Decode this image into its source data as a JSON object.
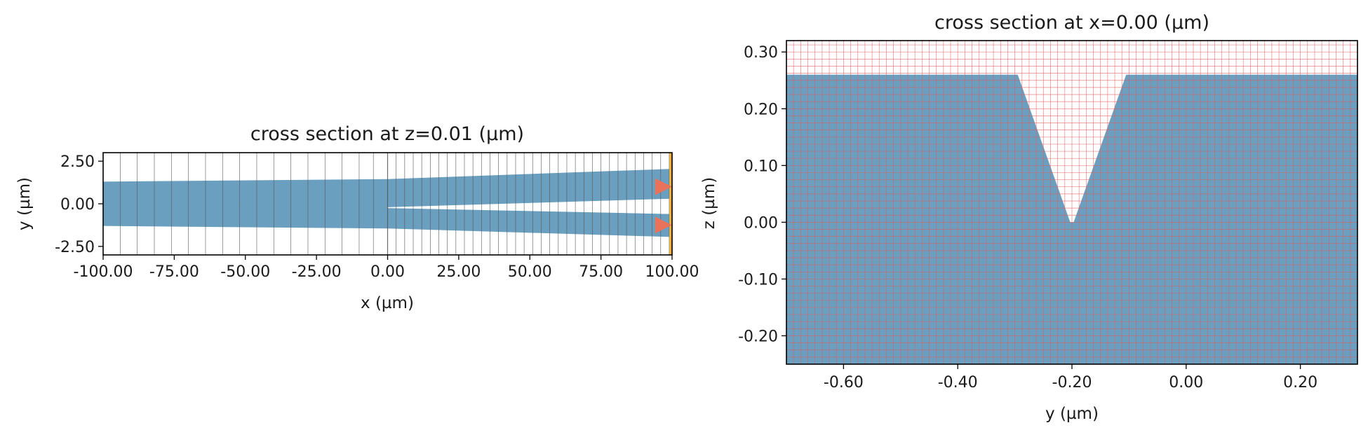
{
  "chart_data": [
    {
      "type": "cross-section",
      "title": "cross section at z=0.01 (µm)",
      "xlabel": "x (µm)",
      "ylabel": "y (µm)",
      "xlim": [
        -100,
        100
      ],
      "ylim": [
        -3,
        3
      ],
      "xticks": [
        -100,
        -75,
        -50,
        -25,
        0,
        25,
        50,
        75,
        100
      ],
      "xtick_labels": [
        "-100.00",
        "-75.00",
        "-50.00",
        "-25.00",
        "0.00",
        "25.00",
        "50.00",
        "75.00",
        "100.00"
      ],
      "yticks": [
        2.5,
        0,
        -2.5
      ],
      "ytick_labels": [
        "2.50",
        "0.00",
        "-2.50"
      ],
      "structure_color": "#6a9fc0",
      "grid_color": "#555555",
      "source_color": "#e8735a",
      "monitor_color": "#f0b040",
      "structures": [
        {
          "name": "input-waveguide",
          "points": [
            [
              -100,
              1.3
            ],
            [
              0,
              1.45
            ],
            [
              0,
              -0.25
            ],
            [
              -100,
              -1.3
            ]
          ]
        },
        {
          "name": "upper-branch",
          "points": [
            [
              0,
              1.45
            ],
            [
              100,
              2.05
            ],
            [
              100,
              0.3
            ],
            [
              0,
              -0.2
            ]
          ]
        },
        {
          "name": "lower-branch",
          "points": [
            [
              0,
              -0.25
            ],
            [
              100,
              -0.6
            ],
            [
              100,
              -1.95
            ],
            [
              0,
              -1.45
            ]
          ]
        },
        {
          "name": "input-waveguide-lower",
          "points": [
            [
              -100,
              -1.3
            ],
            [
              0,
              -1.45
            ],
            [
              0,
              -0.25
            ],
            [
              -100,
              -0.1
            ]
          ]
        }
      ],
      "grid_lines_x": [
        -100,
        -94,
        -88,
        -82,
        -76,
        -70,
        -64,
        -58,
        -52,
        -46,
        -40,
        -34,
        -28,
        -22,
        -16,
        -10,
        -5,
        0,
        3,
        6,
        9,
        12,
        15,
        18,
        21,
        24,
        27,
        30,
        33,
        36,
        39,
        42,
        45,
        48,
        51,
        54,
        57,
        60,
        63,
        66,
        69,
        72,
        75,
        78,
        81,
        84,
        87,
        90,
        93,
        96,
        99
      ],
      "sources": [
        [
          97.5,
          1.0
        ],
        [
          97.5,
          -1.25
        ]
      ],
      "monitor_x": 99.5
    },
    {
      "type": "cross-section",
      "title": "cross section at x=0.00 (µm)",
      "xlabel": "y (µm)",
      "ylabel": "z (µm)",
      "xlim": [
        -0.7,
        0.3
      ],
      "ylim": [
        -0.25,
        0.32
      ],
      "xticks": [
        -0.6,
        -0.4,
        -0.2,
        0.0,
        0.2
      ],
      "xtick_labels": [
        "-0.60",
        "-0.40",
        "-0.20",
        "0.00",
        "0.20"
      ],
      "yticks": [
        0.3,
        0.2,
        0.1,
        0.0,
        -0.1,
        -0.2
      ],
      "ytick_labels": [
        "0.30",
        "0.20",
        "0.10",
        "0.00",
        "-0.10",
        "-0.20"
      ],
      "structure_color": "#6a9fc0",
      "grid_color": "#e85a5a",
      "structure_top": 0.26,
      "structure_bottom": -0.25,
      "gap": {
        "top_left": -0.295,
        "top_right": -0.105,
        "bottom_left": -0.203,
        "bottom_right": -0.197,
        "bottom_z": 0.0
      },
      "grid_step_x": 0.0125,
      "grid_step_y": 0.0125
    }
  ]
}
